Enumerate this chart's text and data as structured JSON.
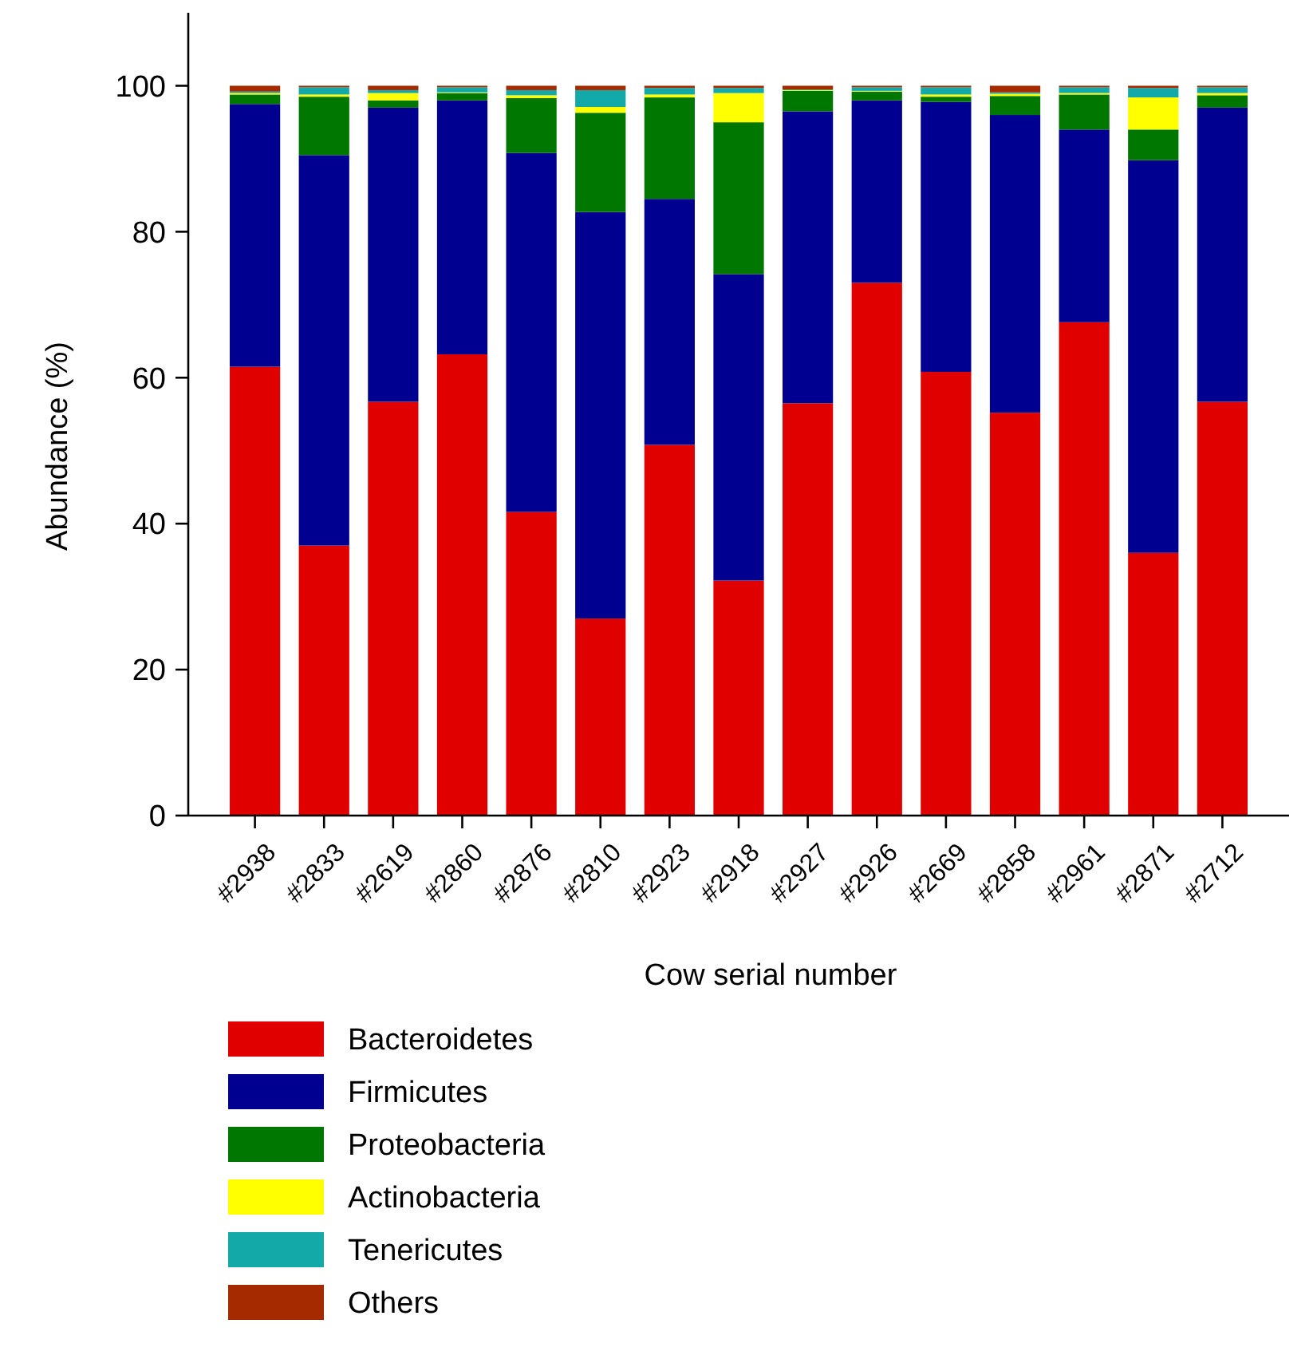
{
  "chart_data": {
    "type": "bar",
    "stacked": true,
    "xlabel": "Cow serial number",
    "ylabel": "Abundance (%)",
    "categories": [
      "#2938",
      "#2833",
      "#2619",
      "#2860",
      "#2876",
      "#2810",
      "#2923",
      "#2918",
      "#2927",
      "#2926",
      "#2669",
      "#2858",
      "#2961",
      "#2871",
      "#2712"
    ],
    "series": [
      {
        "name": "Bacteroidetes",
        "color": "#e00000",
        "values": [
          61.5,
          37,
          56.7,
          63.2,
          41.6,
          27,
          50.8,
          32.2,
          56.5,
          73,
          60.8,
          55.2,
          67.6,
          36,
          56.7
        ]
      },
      {
        "name": "Firmicutes",
        "color": "#000090",
        "values": [
          36,
          53.5,
          40.3,
          34.8,
          49.2,
          55.7,
          33.7,
          42,
          40,
          25,
          37,
          40.8,
          26.4,
          53.8,
          40.3
        ]
      },
      {
        "name": "Proteobacteria",
        "color": "#007800",
        "values": [
          1.3,
          8,
          1,
          1,
          7.5,
          13.6,
          13.9,
          20.8,
          2.8,
          1.2,
          0.7,
          2.6,
          4.8,
          4.2,
          1.7
        ]
      },
      {
        "name": "Actinobacteria",
        "color": "#ffff00",
        "values": [
          0.2,
          0.3,
          1,
          0.1,
          0.4,
          0.8,
          0.4,
          4,
          0.1,
          0.1,
          0.3,
          0.3,
          0.2,
          4.4,
          0.3
        ]
      },
      {
        "name": "Tenericutes",
        "color": "#13a9a9",
        "values": [
          0.2,
          1,
          0.4,
          0.7,
          0.7,
          2.3,
          0.9,
          0.7,
          0.1,
          0.5,
          1,
          0.2,
          0.8,
          1.3,
          0.8
        ]
      },
      {
        "name": "Others",
        "color": "#a52a00",
        "values": [
          0.8,
          0.2,
          0.6,
          0.2,
          0.6,
          0.6,
          0.3,
          0.3,
          0.5,
          0.2,
          0.2,
          0.9,
          0.2,
          0.3,
          0.2
        ]
      }
    ],
    "ylim": [
      0,
      110
    ],
    "yticks": [
      0,
      20,
      40,
      60,
      80,
      100
    ],
    "grid": false,
    "legend": "bottom"
  }
}
